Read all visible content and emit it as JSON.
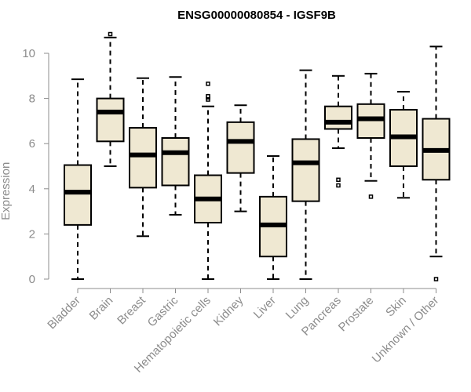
{
  "chart_data": {
    "type": "boxplot",
    "title": "ENSG00000080854 - IGSF9B",
    "xlabel": "",
    "ylabel": "Expression",
    "ylim": [
      0,
      11
    ],
    "yticks": [
      0,
      2,
      4,
      6,
      8,
      10
    ],
    "grid": false,
    "colors": {
      "box_fill": "#efe8d2",
      "stroke": "#000000",
      "axis": "#8c8c8c",
      "text": "#8c8c8c"
    },
    "categories": [
      "Bladder",
      "Brain",
      "Breast",
      "Gastric",
      "Hematopoietic cells",
      "Kidney",
      "Liver",
      "Lung",
      "Pancreas",
      "Prostate",
      "Skin",
      "Unknown / Other"
    ],
    "boxes": [
      {
        "name": "Bladder",
        "whisker_low": 0.0,
        "q1": 2.4,
        "median": 3.85,
        "q3": 5.05,
        "whisker_high": 8.85,
        "outliers": []
      },
      {
        "name": "Brain",
        "whisker_low": 5.0,
        "q1": 6.1,
        "median": 7.4,
        "q3": 8.0,
        "whisker_high": 10.7,
        "outliers": [
          10.85
        ]
      },
      {
        "name": "Breast",
        "whisker_low": 1.9,
        "q1": 4.05,
        "median": 5.5,
        "q3": 6.7,
        "whisker_high": 8.9,
        "outliers": []
      },
      {
        "name": "Gastric",
        "whisker_low": 2.85,
        "q1": 4.15,
        "median": 5.6,
        "q3": 6.25,
        "whisker_high": 8.95,
        "outliers": []
      },
      {
        "name": "Hematopoietic cells",
        "whisker_low": 0.0,
        "q1": 2.5,
        "median": 3.55,
        "q3": 4.6,
        "whisker_high": 7.65,
        "outliers": [
          7.95,
          8.05,
          8.1,
          8.65
        ]
      },
      {
        "name": "Kidney",
        "whisker_low": 3.0,
        "q1": 4.7,
        "median": 6.1,
        "q3": 6.95,
        "whisker_high": 7.7,
        "outliers": []
      },
      {
        "name": "Liver",
        "whisker_low": 0.0,
        "q1": 1.0,
        "median": 2.4,
        "q3": 3.65,
        "whisker_high": 5.45,
        "outliers": []
      },
      {
        "name": "Lung",
        "whisker_low": 0.0,
        "q1": 3.45,
        "median": 5.15,
        "q3": 6.2,
        "whisker_high": 9.25,
        "outliers": []
      },
      {
        "name": "Pancreas",
        "whisker_low": 5.8,
        "q1": 6.65,
        "median": 6.95,
        "q3": 7.65,
        "whisker_high": 9.0,
        "outliers": [
          4.4,
          4.15
        ]
      },
      {
        "name": "Prostate",
        "whisker_low": 4.35,
        "q1": 6.25,
        "median": 7.1,
        "q3": 7.75,
        "whisker_high": 9.1,
        "outliers": [
          3.65
        ]
      },
      {
        "name": "Skin",
        "whisker_low": 3.6,
        "q1": 5.0,
        "median": 6.3,
        "q3": 7.5,
        "whisker_high": 8.3,
        "outliers": []
      },
      {
        "name": "Unknown / Other",
        "whisker_low": 1.0,
        "q1": 4.4,
        "median": 5.7,
        "q3": 7.1,
        "whisker_high": 10.3,
        "outliers": [
          0.0
        ]
      }
    ]
  }
}
